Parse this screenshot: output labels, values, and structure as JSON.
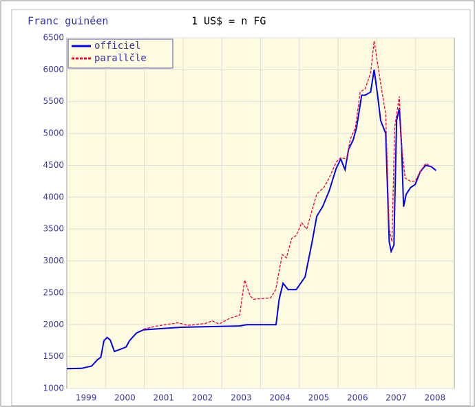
{
  "chart_data": {
    "type": "line",
    "title": "Franc guinéen",
    "subtitle": "1 US$ = n FG",
    "xlim": [
      1999,
      2009
    ],
    "xticks": [
      1999,
      2000,
      2001,
      2002,
      2003,
      2004,
      2005,
      2006,
      2007,
      2008
    ],
    "ylim": [
      1000,
      6500
    ],
    "yticks": [
      1000,
      1500,
      2000,
      2500,
      3000,
      3500,
      4000,
      4500,
      5000,
      5500,
      6000,
      6500
    ],
    "grid": true,
    "legend": "upper left",
    "series": [
      {
        "name": "officiel",
        "color": "#0000ee",
        "dashed": false,
        "x": [
          1999.0,
          1999.38,
          1999.64,
          1999.79,
          1999.88,
          1999.96,
          2000.04,
          2000.12,
          2000.23,
          2000.41,
          2000.53,
          2000.62,
          2000.8,
          2000.98,
          2001.95,
          2003.46,
          2003.64,
          2004.4,
          2004.48,
          2004.58,
          2004.71,
          2004.92,
          2005.15,
          2005.33,
          2005.45,
          2005.6,
          2005.77,
          2005.95,
          2006.07,
          2006.18,
          2006.27,
          2006.39,
          2006.48,
          2006.61,
          2006.7,
          2006.84,
          2006.93,
          2007.02,
          2007.1,
          2007.23,
          2007.32,
          2007.37,
          2007.44,
          2007.51,
          2007.58,
          2007.64,
          2007.69,
          2007.76,
          2007.87,
          2007.99,
          2008.12,
          2008.26,
          2008.4,
          2008.53
        ],
        "values": [
          1310,
          1315,
          1350,
          1450,
          1490,
          1750,
          1800,
          1760,
          1580,
          1620,
          1650,
          1750,
          1870,
          1920,
          1960,
          1980,
          2000,
          2000,
          2400,
          2650,
          2550,
          2550,
          2750,
          3300,
          3700,
          3850,
          4100,
          4450,
          4600,
          4430,
          4750,
          4900,
          5100,
          5600,
          5600,
          5650,
          6000,
          5600,
          5200,
          5000,
          3300,
          3150,
          3250,
          5200,
          5400,
          4800,
          3850,
          4050,
          4150,
          4200,
          4400,
          4500,
          4480,
          4420
        ]
      },
      {
        "name": "parallčle",
        "color": "#ee0033",
        "dashed": true,
        "x": [
          2000.98,
          2001.33,
          2001.87,
          2002.13,
          2002.58,
          2002.75,
          2002.93,
          2003.2,
          2003.46,
          2003.59,
          2003.73,
          2003.82,
          2004.26,
          2004.39,
          2004.56,
          2004.67,
          2004.8,
          2004.92,
          2005.06,
          2005.19,
          2005.33,
          2005.45,
          2005.63,
          2005.77,
          2005.95,
          2006.07,
          2006.22,
          2006.31,
          2006.45,
          2006.57,
          2006.7,
          2006.84,
          2006.93,
          2007.02,
          2007.12,
          2007.23,
          2007.32,
          2007.39,
          2007.46,
          2007.58,
          2007.64,
          2007.73,
          2007.87,
          2007.99,
          2008.12,
          2008.26,
          2008.4
        ],
        "values": [
          1930,
          1980,
          2030,
          1990,
          2020,
          2060,
          2010,
          2100,
          2150,
          2700,
          2450,
          2400,
          2420,
          2550,
          3100,
          3050,
          3350,
          3400,
          3600,
          3500,
          3800,
          4050,
          4150,
          4300,
          4550,
          4620,
          4600,
          4900,
          5100,
          5650,
          5700,
          5950,
          6450,
          6100,
          5700,
          5300,
          3500,
          3300,
          5100,
          5580,
          4800,
          4300,
          4250,
          4250,
          4400,
          4530,
          4480
        ]
      }
    ]
  }
}
